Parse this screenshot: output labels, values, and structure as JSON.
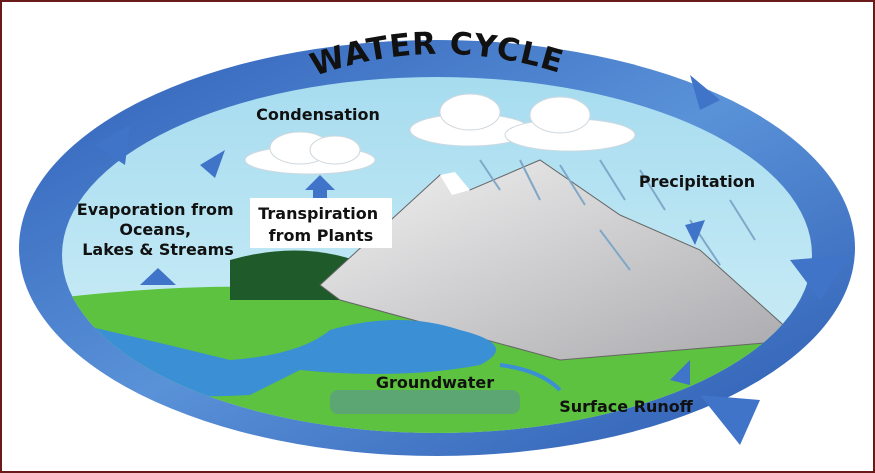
{
  "title": "WATER CYCLE",
  "labels": {
    "condensation": [
      "Condensation"
    ],
    "precipitation": [
      "Precipitation"
    ],
    "evaporation": [
      "Evaporation from",
      "Oceans,",
      "Lakes & Streams"
    ],
    "transpiration": [
      "Transpiration",
      "from Plants"
    ],
    "groundwater": [
      "Groundwater"
    ],
    "runoff": [
      "Surface Runoff"
    ]
  }
}
